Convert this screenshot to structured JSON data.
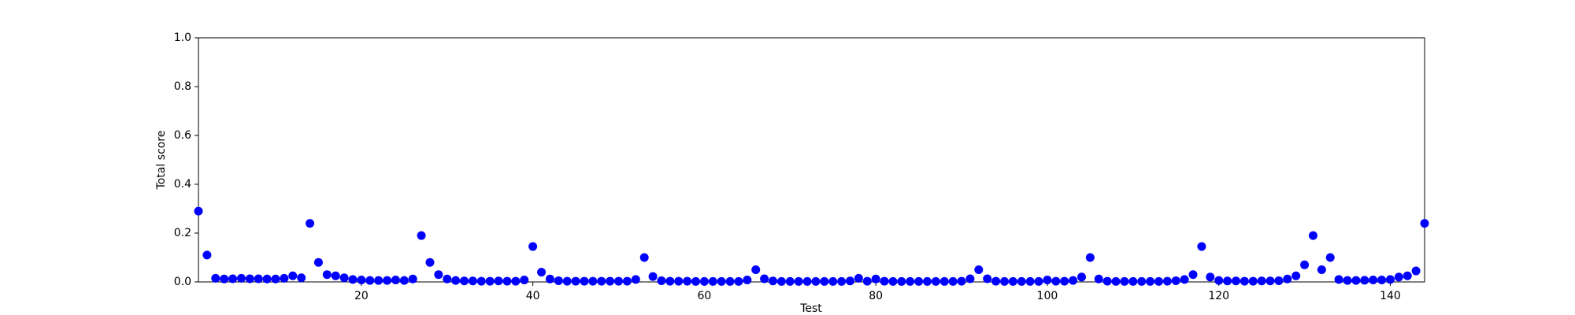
{
  "chart_data": {
    "type": "scatter",
    "xlabel": "Test",
    "ylabel": "Total score",
    "color": "#0000ff",
    "x": [
      1,
      2,
      3,
      4,
      5,
      6,
      7,
      8,
      9,
      10,
      11,
      12,
      13,
      14,
      15,
      16,
      17,
      18,
      19,
      20,
      21,
      22,
      23,
      24,
      25,
      26,
      27,
      28,
      29,
      30,
      31,
      32,
      33,
      34,
      35,
      36,
      37,
      38,
      39,
      40,
      41,
      42,
      43,
      44,
      45,
      46,
      47,
      48,
      49,
      50,
      51,
      52,
      53,
      54,
      55,
      56,
      57,
      58,
      59,
      60,
      61,
      62,
      63,
      64,
      65,
      66,
      67,
      68,
      69,
      70,
      71,
      72,
      73,
      74,
      75,
      76,
      77,
      78,
      79,
      80,
      81,
      82,
      83,
      84,
      85,
      86,
      87,
      88,
      89,
      90,
      91,
      92,
      93,
      94,
      95,
      96,
      97,
      98,
      99,
      100,
      101,
      102,
      103,
      104,
      105,
      106,
      107,
      108,
      109,
      110,
      111,
      112,
      113,
      114,
      115,
      116,
      117,
      118,
      119,
      120,
      121,
      122,
      123,
      124,
      125,
      126,
      127,
      128,
      129,
      130,
      131,
      132,
      133,
      134,
      135,
      136,
      137,
      138,
      139,
      140,
      141,
      142,
      143,
      144
    ],
    "values": [
      0.29,
      0.11,
      0.015,
      0.012,
      0.013,
      0.015,
      0.013,
      0.013,
      0.012,
      0.012,
      0.015,
      0.025,
      0.017,
      0.24,
      0.08,
      0.03,
      0.025,
      0.017,
      0.01,
      0.008,
      0.006,
      0.006,
      0.006,
      0.008,
      0.006,
      0.012,
      0.19,
      0.08,
      0.03,
      0.012,
      0.006,
      0.004,
      0.004,
      0.003,
      0.003,
      0.004,
      0.003,
      0.003,
      0.008,
      0.145,
      0.04,
      0.012,
      0.005,
      0.003,
      0.003,
      0.003,
      0.003,
      0.003,
      0.003,
      0.003,
      0.003,
      0.01,
      0.1,
      0.022,
      0.005,
      0.003,
      0.003,
      0.003,
      0.002,
      0.002,
      0.002,
      0.002,
      0.002,
      0.002,
      0.008,
      0.05,
      0.013,
      0.004,
      0.002,
      0.002,
      0.002,
      0.002,
      0.002,
      0.002,
      0.002,
      0.002,
      0.004,
      0.015,
      0.003,
      0.012,
      0.003,
      0.002,
      0.002,
      0.002,
      0.002,
      0.002,
      0.002,
      0.002,
      0.002,
      0.003,
      0.013,
      0.05,
      0.013,
      0.003,
      0.002,
      0.002,
      0.002,
      0.002,
      0.002,
      0.008,
      0.003,
      0.003,
      0.006,
      0.02,
      0.1,
      0.012,
      0.003,
      0.002,
      0.002,
      0.002,
      0.002,
      0.002,
      0.002,
      0.003,
      0.005,
      0.01,
      0.03,
      0.145,
      0.02,
      0.006,
      0.004,
      0.004,
      0.003,
      0.003,
      0.004,
      0.004,
      0.005,
      0.012,
      0.025,
      0.07,
      0.19,
      0.05,
      0.1,
      0.01,
      0.006,
      0.006,
      0.007,
      0.008,
      0.008,
      0.01,
      0.02,
      0.025,
      0.045,
      0.24
    ],
    "xlim": [
      1,
      144
    ],
    "xticks": [
      20,
      40,
      60,
      80,
      100,
      120,
      140
    ],
    "ylim": [
      0,
      1
    ],
    "yticks": [
      {
        "value": 0,
        "label": "0.0"
      },
      0.2,
      0.4,
      0.6,
      0.8,
      {
        "value": 1,
        "label": "1.0"
      }
    ]
  }
}
